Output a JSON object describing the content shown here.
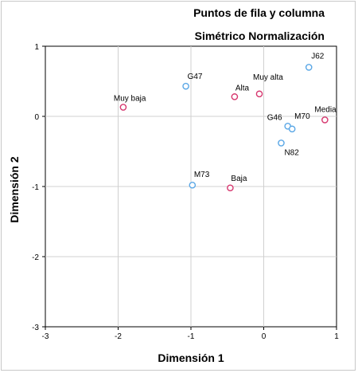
{
  "chart_data": {
    "type": "scatter",
    "title": "Puntos de fila y columna",
    "subtitle": "Simétrico Normalización",
    "xlabel": "Dimensión 1",
    "ylabel": "Dimensión 2",
    "xlim": [
      -3,
      1
    ],
    "ylim": [
      -3,
      1
    ],
    "xticks": [
      -3,
      -2,
      -1,
      0,
      1
    ],
    "yticks": [
      -3,
      -2,
      -1,
      0,
      1
    ],
    "grid": true,
    "series": [
      {
        "color": "#d6366e",
        "points": [
          {
            "label": "Muy baja",
            "x": -1.93,
            "y": 0.13
          },
          {
            "label": "Alta",
            "x": -0.4,
            "y": 0.28
          },
          {
            "label": "Muy alta",
            "x": -0.06,
            "y": 0.32
          },
          {
            "label": "Media",
            "x": 0.84,
            "y": -0.05
          },
          {
            "label": "Baja",
            "x": -0.46,
            "y": -1.02
          }
        ]
      },
      {
        "color": "#5aa7e6",
        "points": [
          {
            "label": "J62",
            "x": 0.62,
            "y": 0.7
          },
          {
            "label": "G47",
            "x": -1.07,
            "y": 0.43
          },
          {
            "label": "G46",
            "x": 0.33,
            "y": -0.14
          },
          {
            "label": "M70",
            "x": 0.39,
            "y": -0.18
          },
          {
            "label": "N82",
            "x": 0.24,
            "y": -0.38
          },
          {
            "label": "M73",
            "x": -0.98,
            "y": -0.98
          }
        ]
      }
    ]
  }
}
